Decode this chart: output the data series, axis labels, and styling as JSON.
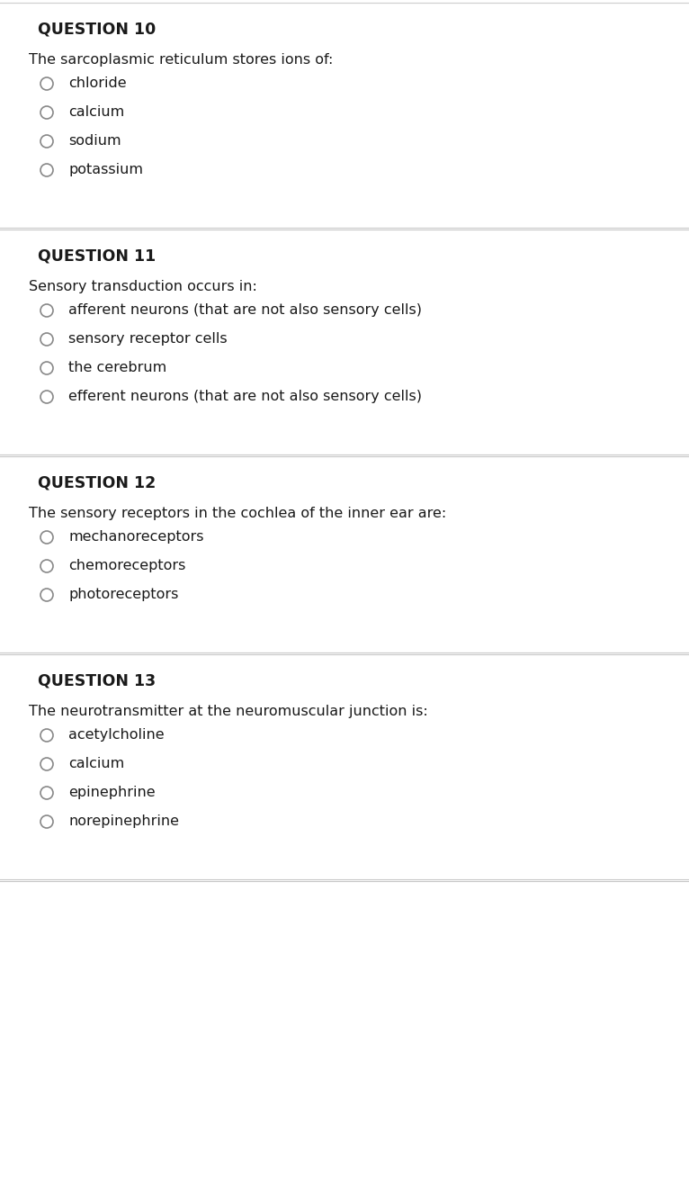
{
  "bg_color": "#ffffff",
  "text_color": "#1a1a1a",
  "question_color": "#1a1a1a",
  "divider_color": "#c8c8c8",
  "circle_edge_color": "#888888",
  "questions": [
    {
      "number": "QUESTION 10",
      "prompt": "The sarcoplasmic reticulum stores ions of:",
      "options": [
        "chloride",
        "calcium",
        "sodium",
        "potassium"
      ]
    },
    {
      "number": "QUESTION 11",
      "prompt": "Sensory transduction occurs in:",
      "options": [
        "afferent neurons (that are not also sensory cells)",
        "sensory receptor cells",
        "the cerebrum",
        "efferent neurons (that are not also sensory cells)"
      ]
    },
    {
      "number": "QUESTION 12",
      "prompt": "The sensory receptors in the cochlea of the inner ear are:",
      "options": [
        "mechanoreceptors",
        "chemoreceptors",
        "photoreceptors"
      ]
    },
    {
      "number": "QUESTION 13",
      "prompt": "The neurotransmitter at the neuromuscular junction is:",
      "options": [
        "acetylcholine",
        "calcium",
        "epinephrine",
        "norepinephrine"
      ]
    }
  ],
  "fig_width": 7.66,
  "fig_height": 13.1,
  "dpi": 100
}
